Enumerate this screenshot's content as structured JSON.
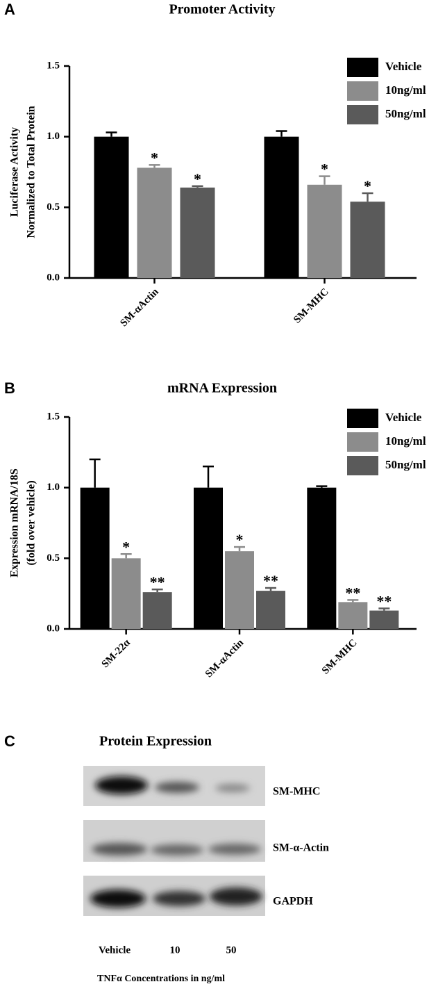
{
  "chart_data": [
    {
      "type": "bar",
      "panel": "A",
      "title": "Promoter Activity",
      "ylabel": [
        "Luciferase Activity",
        "Normalized to Total Protein"
      ],
      "categories": [
        "SM-αActin",
        "SM-MHC"
      ],
      "series": [
        {
          "name": "Vehicle",
          "color": "#000000",
          "values": [
            1.0,
            1.0
          ],
          "errors": [
            0.03,
            0.04
          ],
          "annotations": [
            null,
            null
          ]
        },
        {
          "name": "10ng/ml",
          "color": "#8c8c8c",
          "values": [
            0.78,
            0.66
          ],
          "errors": [
            0.02,
            0.06
          ],
          "annotations": [
            "*",
            "*"
          ]
        },
        {
          "name": "50ng/ml",
          "color": "#5a5a5a",
          "values": [
            0.64,
            0.54
          ],
          "errors": [
            0.01,
            0.06
          ],
          "annotations": [
            "*",
            "*"
          ]
        }
      ],
      "ylim": [
        0,
        1.5
      ],
      "yticks": [
        {
          "value": 0,
          "label": "0.0"
        },
        {
          "value": 0.5,
          "label": "0.5"
        },
        {
          "value": 1,
          "label": "1.0"
        },
        {
          "value": 1.5,
          "label": "1.5"
        }
      ],
      "legend": "top-right"
    },
    {
      "type": "bar",
      "panel": "B",
      "title": "mRNA Expression",
      "ylabel": [
        "Expression mRNA/18S",
        "(fold over vehicle)"
      ],
      "categories": [
        "SM-22α",
        "SM-αActin",
        "SM-MHC"
      ],
      "series": [
        {
          "name": "Vehicle",
          "color": "#000000",
          "values": [
            1.0,
            1.0,
            1.0
          ],
          "errors": [
            0.2,
            0.15,
            0.01
          ],
          "annotations": [
            null,
            null,
            null
          ]
        },
        {
          "name": "10ng/ml",
          "color": "#8c8c8c",
          "values": [
            0.5,
            0.55,
            0.19
          ],
          "errors": [
            0.03,
            0.03,
            0.015
          ],
          "annotations": [
            "*",
            "*",
            "**"
          ]
        },
        {
          "name": "50ng/ml",
          "color": "#5a5a5a",
          "values": [
            0.26,
            0.27,
            0.13
          ],
          "errors": [
            0.02,
            0.02,
            0.015
          ],
          "annotations": [
            "**",
            "**",
            "**"
          ]
        }
      ],
      "ylim": [
        0,
        1.5
      ],
      "yticks": [
        {
          "value": 0,
          "label": "0.0"
        },
        {
          "value": 0.5,
          "label": "0.5"
        },
        {
          "value": 1,
          "label": "1.0"
        },
        {
          "value": 1.5,
          "label": "1.5"
        }
      ],
      "legend": "top-right"
    }
  ],
  "blot": {
    "panel": "C",
    "title": "Protein Expression",
    "rows": [
      "SM-MHC",
      "SM-α-Actin",
      "GAPDH"
    ],
    "lanes": [
      "Vehicle",
      "10",
      "50"
    ],
    "xlabel": "TNFα Concentrations in ng/ml"
  }
}
